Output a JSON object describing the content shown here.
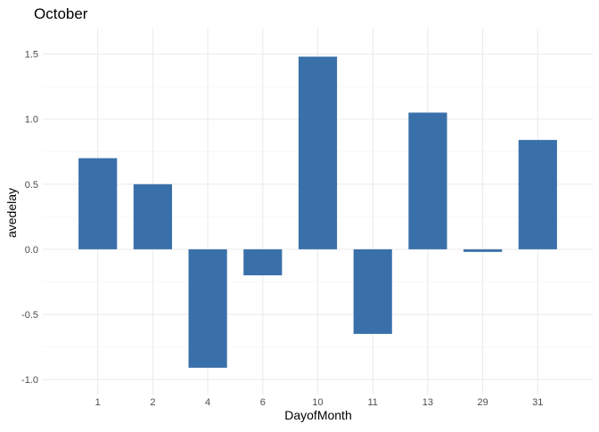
{
  "chart_data": {
    "type": "bar",
    "title": "October",
    "xlabel": "DayofMonth",
    "ylabel": "avedelay",
    "categories": [
      "1",
      "2",
      "4",
      "6",
      "10",
      "11",
      "13",
      "29",
      "31"
    ],
    "values": [
      0.7,
      0.5,
      -0.91,
      -0.2,
      1.48,
      -0.65,
      1.05,
      -0.02,
      0.84
    ],
    "ylim": [
      -1.0,
      1.58
    ],
    "yticks": [
      -1.0,
      -0.5,
      0.0,
      0.5,
      1.0,
      1.5
    ],
    "ytick_labels": [
      "-1.0",
      "-0.5",
      "0.0",
      "0.5",
      "1.0",
      "1.5"
    ],
    "grid": true,
    "legend": "none",
    "bar_color": "#3a70aa"
  }
}
